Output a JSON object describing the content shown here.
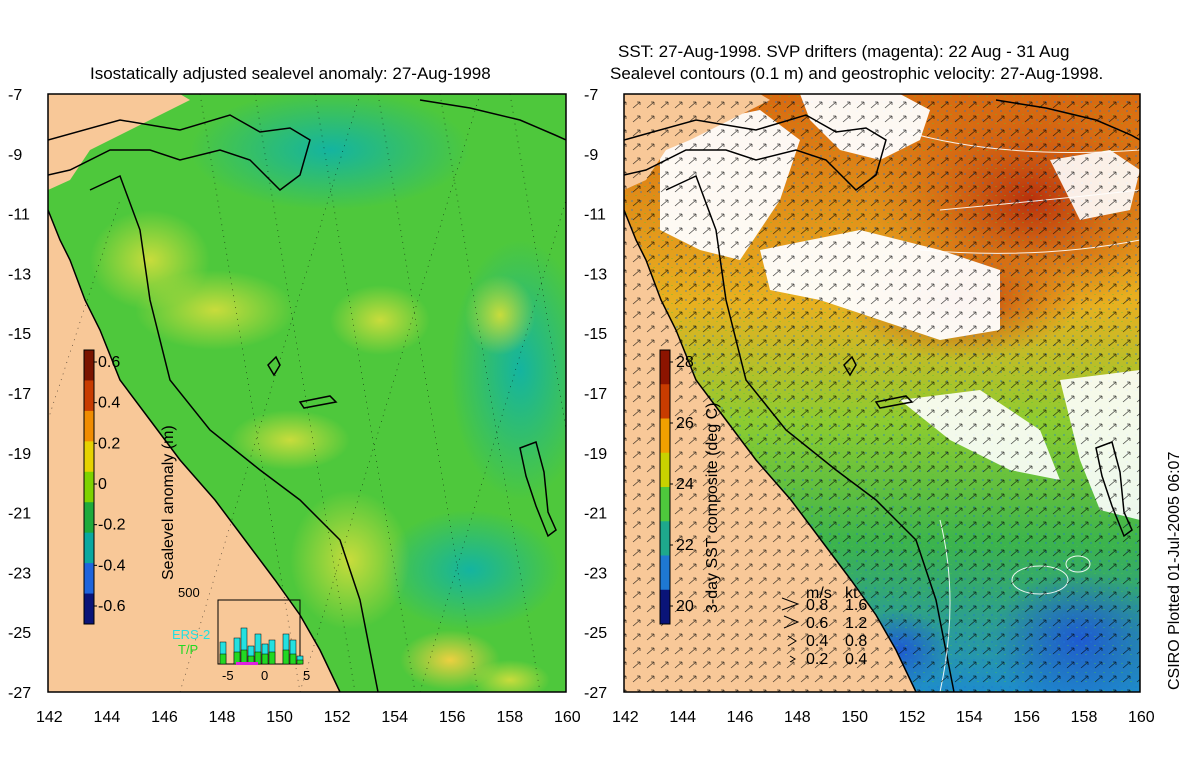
{
  "left_panel": {
    "title": "Isostatically adjusted sealevel anomaly: 27-Aug-1998",
    "colorbar": {
      "label": "Sealevel anomaly (m)",
      "ticks": [
        "0.6",
        "0.4",
        "0.2",
        "0",
        "-0.2",
        "-0.4",
        "-0.6"
      ],
      "colors": [
        "#7a1400",
        "#c83c00",
        "#f08c00",
        "#e6d200",
        "#7ed200",
        "#1eaa3c",
        "#0aa8a0",
        "#1e64dc",
        "#0a1478"
      ]
    },
    "inset": {
      "y_tick": "500",
      "x_ticks": [
        "-5",
        "0",
        "5"
      ],
      "legend": [
        {
          "label": "ERS-2",
          "color": "#22e0e0"
        },
        {
          "label": "T/P",
          "color": "#22d822"
        }
      ]
    }
  },
  "right_panel": {
    "title_line1": "SST: 27-Aug-1998. SVP drifters (magenta): 22 Aug - 31 Aug",
    "title_line2": "Sealevel contours (0.1 m) and geostrophic velocity: 27-Aug-1998.",
    "colorbar": {
      "label": "3-day SST composite (deg C)",
      "ticks": [
        "28",
        "26",
        "24",
        "22",
        "20"
      ],
      "colors": [
        "#8c1400",
        "#c83c00",
        "#f0a000",
        "#c8d200",
        "#4ec83c",
        "#1ea88c",
        "#1e78d2",
        "#0a1478"
      ]
    },
    "velocity_legend": {
      "header_ms": "m/s",
      "header_kt": "kt",
      "rows": [
        {
          "ms": "0.8",
          "kt": "1.6"
        },
        {
          "ms": "0.6",
          "kt": "1.2"
        },
        {
          "ms": "0.4",
          "kt": "0.8"
        },
        {
          "ms": "0.2",
          "kt": "0.4"
        }
      ]
    }
  },
  "axes": {
    "lat_ticks": [
      "-7",
      "-9",
      "-11",
      "-13",
      "-15",
      "-17",
      "-19",
      "-21",
      "-23",
      "-25",
      "-27"
    ],
    "lon_ticks": [
      "142",
      "144",
      "146",
      "148",
      "150",
      "152",
      "154",
      "156",
      "158",
      "160"
    ]
  },
  "credit": "CSIRO Plotted 01-Jul-2005 06:07",
  "colors": {
    "land": "#f8c898",
    "ocean_green": "#4ec83c",
    "cloud": "#ffffff",
    "coast": "#000000"
  }
}
